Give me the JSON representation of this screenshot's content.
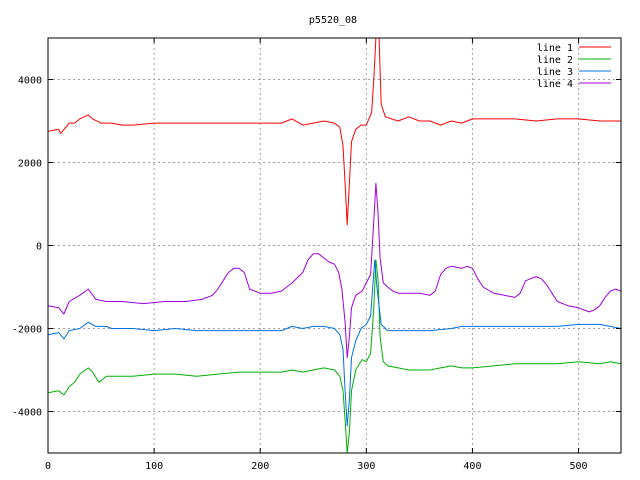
{
  "chart_data": {
    "type": "line",
    "title": "p5520_08",
    "xlabel": "",
    "ylabel": "",
    "xlim": [
      0,
      540
    ],
    "ylim": [
      -5000,
      5000
    ],
    "x_ticks": [
      0,
      100,
      200,
      300,
      400,
      500
    ],
    "y_ticks": [
      -4000,
      -2000,
      0,
      2000,
      4000
    ],
    "grid": true,
    "legend_position": "top-right",
    "series": [
      {
        "name": "line 1",
        "color": "#ff0000",
        "points": [
          [
            0,
            2750
          ],
          [
            10,
            2800
          ],
          [
            12,
            2700
          ],
          [
            20,
            2950
          ],
          [
            25,
            2950
          ],
          [
            30,
            3050
          ],
          [
            38,
            3150
          ],
          [
            42,
            3050
          ],
          [
            50,
            2950
          ],
          [
            60,
            2950
          ],
          [
            70,
            2900
          ],
          [
            80,
            2900
          ],
          [
            100,
            2950
          ],
          [
            120,
            2950
          ],
          [
            140,
            2950
          ],
          [
            160,
            2950
          ],
          [
            180,
            2950
          ],
          [
            200,
            2950
          ],
          [
            220,
            2950
          ],
          [
            230,
            3050
          ],
          [
            240,
            2900
          ],
          [
            250,
            2950
          ],
          [
            260,
            3000
          ],
          [
            270,
            2950
          ],
          [
            275,
            2850
          ],
          [
            278,
            2400
          ],
          [
            280,
            1500
          ],
          [
            282,
            500
          ],
          [
            284,
            1500
          ],
          [
            286,
            2500
          ],
          [
            290,
            2800
          ],
          [
            295,
            2900
          ],
          [
            300,
            2900
          ],
          [
            305,
            3200
          ],
          [
            307,
            4000
          ],
          [
            309,
            5000
          ],
          [
            312,
            5000
          ],
          [
            314,
            3400
          ],
          [
            318,
            3100
          ],
          [
            330,
            3000
          ],
          [
            340,
            3100
          ],
          [
            350,
            3000
          ],
          [
            360,
            3000
          ],
          [
            370,
            2900
          ],
          [
            380,
            3000
          ],
          [
            390,
            2950
          ],
          [
            400,
            3050
          ],
          [
            420,
            3050
          ],
          [
            440,
            3050
          ],
          [
            460,
            3000
          ],
          [
            480,
            3050
          ],
          [
            500,
            3050
          ],
          [
            520,
            3000
          ],
          [
            540,
            3000
          ]
        ]
      },
      {
        "name": "line 2",
        "color": "#00b000",
        "points": [
          [
            0,
            -3550
          ],
          [
            10,
            -3500
          ],
          [
            15,
            -3600
          ],
          [
            20,
            -3400
          ],
          [
            25,
            -3300
          ],
          [
            30,
            -3100
          ],
          [
            38,
            -2950
          ],
          [
            42,
            -3050
          ],
          [
            48,
            -3300
          ],
          [
            55,
            -3150
          ],
          [
            60,
            -3150
          ],
          [
            80,
            -3150
          ],
          [
            100,
            -3100
          ],
          [
            120,
            -3100
          ],
          [
            140,
            -3150
          ],
          [
            160,
            -3100
          ],
          [
            180,
            -3050
          ],
          [
            200,
            -3050
          ],
          [
            220,
            -3050
          ],
          [
            230,
            -3000
          ],
          [
            240,
            -3050
          ],
          [
            250,
            -3000
          ],
          [
            260,
            -2950
          ],
          [
            270,
            -3000
          ],
          [
            275,
            -3150
          ],
          [
            278,
            -3500
          ],
          [
            280,
            -4200
          ],
          [
            282,
            -5000
          ],
          [
            284,
            -4500
          ],
          [
            286,
            -3500
          ],
          [
            290,
            -3000
          ],
          [
            296,
            -2750
          ],
          [
            300,
            -2800
          ],
          [
            304,
            -2600
          ],
          [
            307,
            -1500
          ],
          [
            309,
            -350
          ],
          [
            311,
            -800
          ],
          [
            313,
            -2200
          ],
          [
            316,
            -2800
          ],
          [
            320,
            -2900
          ],
          [
            330,
            -2950
          ],
          [
            340,
            -3000
          ],
          [
            350,
            -3000
          ],
          [
            360,
            -3000
          ],
          [
            370,
            -2950
          ],
          [
            380,
            -2900
          ],
          [
            390,
            -2950
          ],
          [
            400,
            -2950
          ],
          [
            420,
            -2900
          ],
          [
            440,
            -2850
          ],
          [
            460,
            -2850
          ],
          [
            480,
            -2850
          ],
          [
            500,
            -2800
          ],
          [
            520,
            -2850
          ],
          [
            530,
            -2800
          ],
          [
            540,
            -2850
          ]
        ]
      },
      {
        "name": "line 3",
        "color": "#0070e0",
        "points": [
          [
            0,
            -2150
          ],
          [
            10,
            -2100
          ],
          [
            15,
            -2250
          ],
          [
            20,
            -2050
          ],
          [
            30,
            -2000
          ],
          [
            38,
            -1850
          ],
          [
            45,
            -1950
          ],
          [
            55,
            -1950
          ],
          [
            60,
            -2000
          ],
          [
            80,
            -2000
          ],
          [
            100,
            -2050
          ],
          [
            120,
            -2000
          ],
          [
            140,
            -2050
          ],
          [
            160,
            -2050
          ],
          [
            180,
            -2050
          ],
          [
            200,
            -2050
          ],
          [
            220,
            -2050
          ],
          [
            230,
            -1950
          ],
          [
            240,
            -2000
          ],
          [
            250,
            -1950
          ],
          [
            260,
            -1950
          ],
          [
            270,
            -2000
          ],
          [
            275,
            -2150
          ],
          [
            278,
            -2500
          ],
          [
            280,
            -3500
          ],
          [
            282,
            -4350
          ],
          [
            284,
            -3700
          ],
          [
            286,
            -2700
          ],
          [
            290,
            -2300
          ],
          [
            295,
            -2000
          ],
          [
            300,
            -1900
          ],
          [
            304,
            -1700
          ],
          [
            306,
            -1000
          ],
          [
            308,
            -350
          ],
          [
            310,
            -1000
          ],
          [
            314,
            -1900
          ],
          [
            320,
            -2050
          ],
          [
            330,
            -2050
          ],
          [
            340,
            -2050
          ],
          [
            360,
            -2050
          ],
          [
            380,
            -2000
          ],
          [
            390,
            -1950
          ],
          [
            400,
            -1950
          ],
          [
            420,
            -1950
          ],
          [
            440,
            -1950
          ],
          [
            460,
            -1950
          ],
          [
            480,
            -1950
          ],
          [
            500,
            -1900
          ],
          [
            520,
            -1900
          ],
          [
            540,
            -2000
          ]
        ]
      },
      {
        "name": "line 4",
        "color": "#a000e0",
        "points": [
          [
            0,
            -1450
          ],
          [
            10,
            -1500
          ],
          [
            15,
            -1650
          ],
          [
            20,
            -1350
          ],
          [
            30,
            -1200
          ],
          [
            38,
            -1050
          ],
          [
            45,
            -1300
          ],
          [
            55,
            -1350
          ],
          [
            70,
            -1350
          ],
          [
            90,
            -1400
          ],
          [
            110,
            -1350
          ],
          [
            130,
            -1350
          ],
          [
            145,
            -1300
          ],
          [
            155,
            -1200
          ],
          [
            160,
            -1050
          ],
          [
            165,
            -850
          ],
          [
            170,
            -650
          ],
          [
            175,
            -550
          ],
          [
            180,
            -550
          ],
          [
            185,
            -650
          ],
          [
            190,
            -1050
          ],
          [
            200,
            -1150
          ],
          [
            210,
            -1150
          ],
          [
            220,
            -1100
          ],
          [
            230,
            -900
          ],
          [
            240,
            -650
          ],
          [
            245,
            -350
          ],
          [
            250,
            -200
          ],
          [
            255,
            -200
          ],
          [
            260,
            -300
          ],
          [
            265,
            -400
          ],
          [
            270,
            -450
          ],
          [
            274,
            -650
          ],
          [
            277,
            -1050
          ],
          [
            280,
            -1850
          ],
          [
            282,
            -2700
          ],
          [
            284,
            -2200
          ],
          [
            286,
            -1500
          ],
          [
            290,
            -1200
          ],
          [
            296,
            -1100
          ],
          [
            300,
            -900
          ],
          [
            304,
            -700
          ],
          [
            307,
            600
          ],
          [
            309,
            1500
          ],
          [
            311,
            800
          ],
          [
            313,
            -300
          ],
          [
            316,
            -900
          ],
          [
            320,
            -1000
          ],
          [
            325,
            -1100
          ],
          [
            330,
            -1150
          ],
          [
            340,
            -1150
          ],
          [
            350,
            -1150
          ],
          [
            360,
            -1200
          ],
          [
            365,
            -1100
          ],
          [
            370,
            -700
          ],
          [
            375,
            -550
          ],
          [
            380,
            -500
          ],
          [
            390,
            -550
          ],
          [
            395,
            -500
          ],
          [
            400,
            -550
          ],
          [
            405,
            -800
          ],
          [
            410,
            -1000
          ],
          [
            420,
            -1150
          ],
          [
            430,
            -1200
          ],
          [
            440,
            -1250
          ],
          [
            445,
            -1150
          ],
          [
            450,
            -850
          ],
          [
            455,
            -800
          ],
          [
            460,
            -750
          ],
          [
            465,
            -800
          ],
          [
            470,
            -950
          ],
          [
            475,
            -1150
          ],
          [
            480,
            -1350
          ],
          [
            490,
            -1450
          ],
          [
            500,
            -1500
          ],
          [
            510,
            -1600
          ],
          [
            515,
            -1550
          ],
          [
            520,
            -1450
          ],
          [
            525,
            -1250
          ],
          [
            530,
            -1100
          ],
          [
            535,
            -1050
          ],
          [
            540,
            -1100
          ]
        ]
      }
    ]
  }
}
